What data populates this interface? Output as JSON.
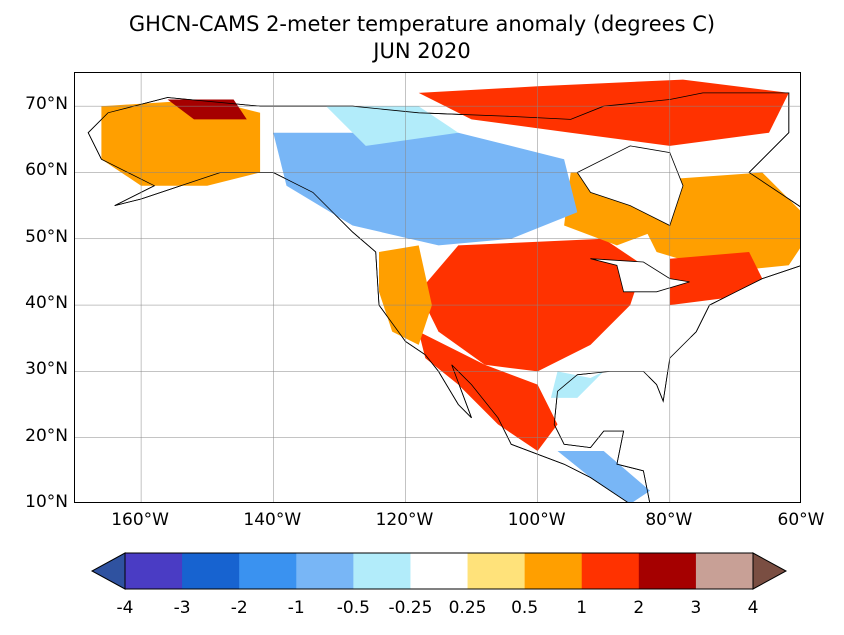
{
  "title": {
    "line1": "GHCN-CAMS 2-meter temperature anomaly (degrees C)",
    "line2": "JUN 2020"
  },
  "map": {
    "lon_range": [
      -170,
      -60
    ],
    "lat_range": [
      10,
      75
    ],
    "grid": true,
    "x_ticks": [
      {
        "lon": -160,
        "label": "160°W"
      },
      {
        "lon": -140,
        "label": "140°W"
      },
      {
        "lon": -120,
        "label": "120°W"
      },
      {
        "lon": -100,
        "label": "100°W"
      },
      {
        "lon": -80,
        "label": "80°W"
      },
      {
        "lon": -60,
        "label": "60°W"
      }
    ],
    "y_ticks": [
      {
        "lat": 70,
        "label": "70°N"
      },
      {
        "lat": 60,
        "label": "60°N"
      },
      {
        "lat": 50,
        "label": "50°N"
      },
      {
        "lat": 40,
        "label": "40°N"
      },
      {
        "lat": 30,
        "label": "30°N"
      },
      {
        "lat": 20,
        "label": "20°N"
      },
      {
        "lat": 10,
        "label": "10°N"
      }
    ]
  },
  "colorbar": {
    "labels": [
      "-4",
      "-3",
      "-2",
      "-1",
      "-0.5",
      "-0.25",
      "0.25",
      "0.5",
      "1",
      "2",
      "3",
      "4"
    ],
    "under_color": "#2f52a0",
    "over_color": "#7a4e42",
    "bin_colors": [
      "#4a3cc4",
      "#1763d0",
      "#3a92f0",
      "#78b6f6",
      "#b2ecfa",
      "#ffffff",
      "#ffe27a",
      "#ff9f00",
      "#ff3200",
      "#a50000",
      "#c8a096"
    ]
  },
  "anomaly_regions": [
    {
      "name": "central-plains",
      "category": 9,
      "points": [
        [
          -104,
          48
        ],
        [
          -94,
          48
        ],
        [
          -90,
          42
        ],
        [
          -93,
          38
        ],
        [
          -103,
          37
        ],
        [
          -107,
          42
        ]
      ]
    },
    {
      "name": "central-us-warm",
      "category": 8,
      "points": [
        [
          -112,
          49
        ],
        [
          -90,
          50
        ],
        [
          -84,
          46
        ],
        [
          -86,
          40
        ],
        [
          -92,
          34
        ],
        [
          -100,
          30
        ],
        [
          -108,
          31
        ],
        [
          -115,
          36
        ],
        [
          -118,
          42
        ]
      ]
    },
    {
      "name": "sw-us-mexico",
      "category": 8,
      "points": [
        [
          -118,
          36
        ],
        [
          -108,
          31
        ],
        [
          -100,
          28
        ],
        [
          -97,
          22
        ],
        [
          -100,
          18
        ],
        [
          -106,
          22
        ],
        [
          -112,
          28
        ],
        [
          -117,
          32
        ]
      ]
    },
    {
      "name": "canada-arctic-warm",
      "category": 8,
      "points": [
        [
          -118,
          72
        ],
        [
          -100,
          73
        ],
        [
          -78,
          74
        ],
        [
          -62,
          72
        ],
        [
          -65,
          66
        ],
        [
          -80,
          64
        ],
        [
          -95,
          66
        ],
        [
          -110,
          68
        ]
      ]
    },
    {
      "name": "quebec-warm",
      "category": 7,
      "points": [
        [
          -80,
          59
        ],
        [
          -66,
          60
        ],
        [
          -58,
          52
        ],
        [
          -62,
          46
        ],
        [
          -72,
          45
        ],
        [
          -82,
          48
        ],
        [
          -85,
          54
        ]
      ]
    },
    {
      "name": "northeast-us-hot",
      "category": 8,
      "points": [
        [
          -80,
          47
        ],
        [
          -68,
          48
        ],
        [
          -66,
          44
        ],
        [
          -72,
          41
        ],
        [
          -80,
          40
        ]
      ]
    },
    {
      "name": "hudson-east-warm",
      "category": 7,
      "points": [
        [
          -95,
          60
        ],
        [
          -82,
          60
        ],
        [
          -80,
          52
        ],
        [
          -88,
          49
        ],
        [
          -96,
          52
        ]
      ]
    },
    {
      "name": "west-canada-cool",
      "category": 3,
      "points": [
        [
          -140,
          66
        ],
        [
          -112,
          66
        ],
        [
          -96,
          62
        ],
        [
          -94,
          54
        ],
        [
          -104,
          50
        ],
        [
          -115,
          49
        ],
        [
          -128,
          52
        ],
        [
          -138,
          58
        ]
      ]
    },
    {
      "name": "nw-canada-cool",
      "category": 4,
      "points": [
        [
          -132,
          70
        ],
        [
          -118,
          70
        ],
        [
          -112,
          66
        ],
        [
          -126,
          64
        ]
      ]
    },
    {
      "name": "alaska-mixed-warm",
      "category": 7,
      "points": [
        [
          -166,
          70
        ],
        [
          -150,
          71
        ],
        [
          -142,
          69
        ],
        [
          -142,
          60
        ],
        [
          -150,
          58
        ],
        [
          -160,
          58
        ],
        [
          -166,
          62
        ]
      ]
    },
    {
      "name": "alaska-hot",
      "category": 9,
      "points": [
        [
          -156,
          71
        ],
        [
          -146,
          71
        ],
        [
          -144,
          68
        ],
        [
          -152,
          68
        ]
      ]
    },
    {
      "name": "southeast-us-neutral",
      "category": 5,
      "points": [
        [
          -92,
          34
        ],
        [
          -80,
          36
        ],
        [
          -76,
          35
        ],
        [
          -80,
          30
        ],
        [
          -84,
          29
        ],
        [
          -92,
          29
        ]
      ]
    },
    {
      "name": "gulf-coast-cool",
      "category": 4,
      "points": [
        [
          -97,
          30
        ],
        [
          -92,
          29
        ],
        [
          -90,
          30
        ],
        [
          -94,
          26
        ],
        [
          -98,
          26
        ]
      ]
    },
    {
      "name": "central-america-cool",
      "category": 3,
      "points": [
        [
          -97,
          18
        ],
        [
          -90,
          18
        ],
        [
          -83,
          12
        ],
        [
          -86,
          10
        ],
        [
          -92,
          14
        ]
      ]
    },
    {
      "name": "west-coast-mixed",
      "category": 7,
      "points": [
        [
          -124,
          48
        ],
        [
          -118,
          49
        ],
        [
          -116,
          40
        ],
        [
          -118,
          34
        ],
        [
          -122,
          36
        ],
        [
          -124,
          42
        ]
      ]
    }
  ]
}
